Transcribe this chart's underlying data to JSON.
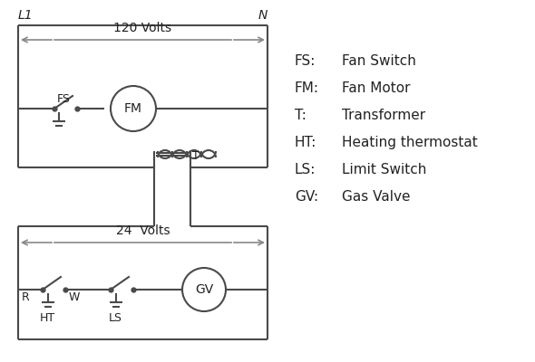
{
  "bg_color": "#ffffff",
  "line_color": "#4a4a4a",
  "arrow_color": "#888888",
  "text_color": "#222222",
  "legend": {
    "FS": "Fan Switch",
    "FM": "Fan Motor",
    "T": "Transformer",
    "HT": "Heating thermostat",
    "LS": "Limit Switch",
    "GV": "Gas Valve"
  },
  "L1_label": "L1",
  "N_label": "N",
  "v120_label": "120 Volts",
  "v24_label": "24  Volts"
}
